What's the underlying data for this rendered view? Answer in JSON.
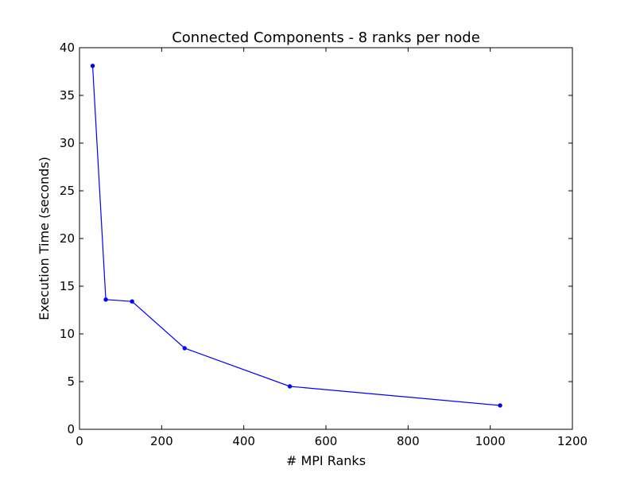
{
  "chart_data": {
    "type": "line",
    "title": "Connected Components - 8 ranks per node",
    "xlabel": "# MPI Ranks",
    "ylabel": "Execution Time (seconds)",
    "xlim": [
      0,
      1200
    ],
    "ylim": [
      0,
      40
    ],
    "x_ticks": [
      0,
      200,
      400,
      600,
      800,
      1000,
      1200
    ],
    "y_ticks": [
      0,
      5,
      10,
      15,
      20,
      25,
      30,
      35,
      40
    ],
    "grid": false,
    "legend": "none",
    "series": [
      {
        "color": "#0000ff",
        "marker": "point",
        "x": [
          32,
          64,
          128,
          256,
          512,
          1024
        ],
        "y": [
          38.1,
          13.6,
          13.4,
          8.5,
          4.5,
          2.5
        ]
      }
    ]
  }
}
